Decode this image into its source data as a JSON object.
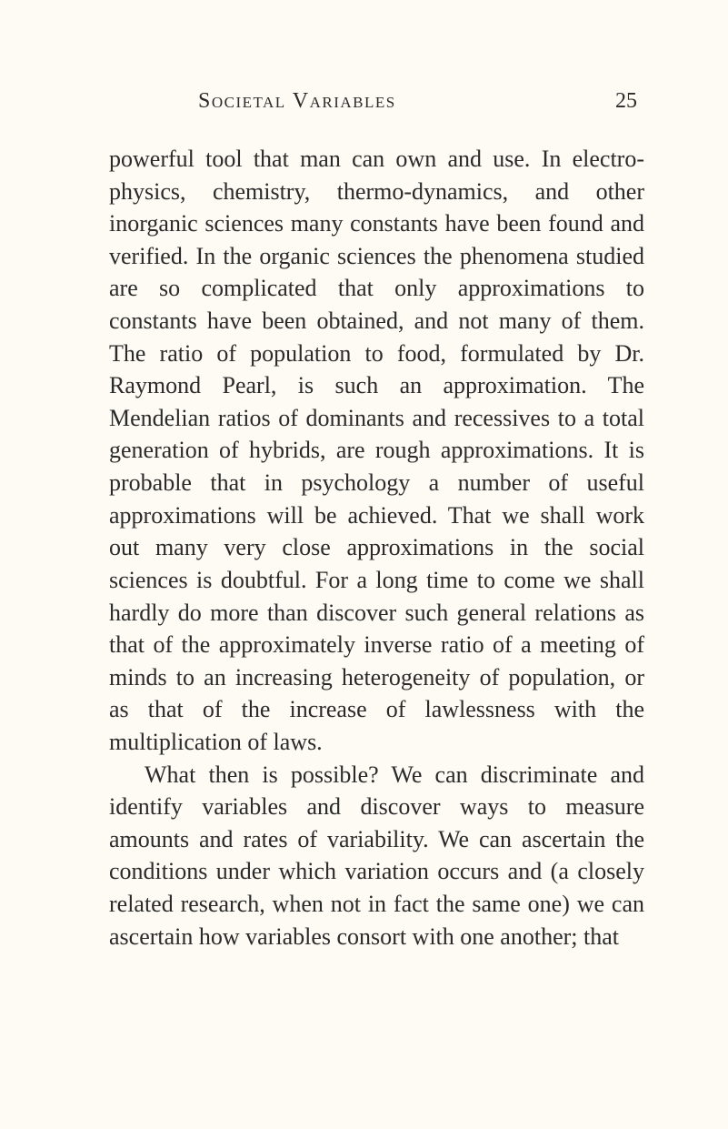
{
  "page": {
    "running_head": "Societal Variables",
    "page_number": "25",
    "background_color": "#fdfbf4",
    "text_color": "#2a2a2a",
    "font_family": "Georgia, 'Times New Roman', serif",
    "body_fontsize": 26,
    "header_fontsize": 24,
    "line_height": 1.37,
    "paragraphs": [
      "powerful tool that man can own and use. In electro-physics, chemistry, thermo-dynamics, and other inorganic sciences many constants have been found and verified. In the organic sciences the phenomena studied are so complicated that only approximations to constants have been obtained, and not many of them. The ratio of population to food, formulated by Dr. Raymond Pearl, is such an approximation. The Mendelian ratios of dominants and recessives to a total generation of hybrids, are rough approximations. It is probable that in psychology a number of useful approximations will be achieved. That we shall work out many very close approximations in the social sciences is doubtful. For a long time to come we shall hardly do more than discover such general relations as that of the approximately inverse ratio of a meeting of minds to an increasing heterogeneity of population, or as that of the increase of lawlessness with the multiplication of laws.",
      "What then is possible? We can discriminate and identify variables and discover ways to measure amounts and rates of variability. We can ascertain the conditions under which variation occurs and (a closely related research, when not in fact the same one) we can ascertain how variables consort with one another; that"
    ]
  }
}
